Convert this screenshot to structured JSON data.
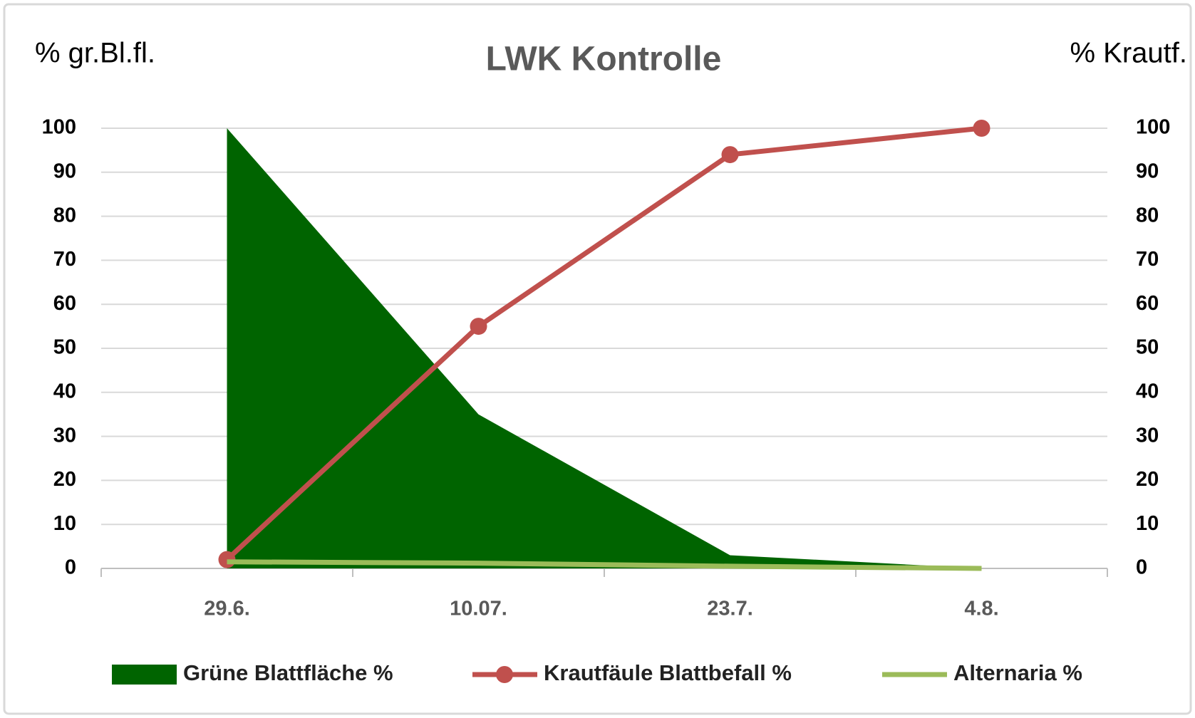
{
  "chart_data": {
    "type": "area-line",
    "title": "LWK Kontrolle",
    "ylabel": "% gr.Bl.fl.",
    "y2label": "% Krautf.",
    "categories": [
      "29.6.",
      "10.07.",
      "23.7.",
      "4.8."
    ],
    "series": [
      {
        "name": "Grüne Blattfläche %",
        "color": "#006400",
        "kind": "area",
        "values": [
          100,
          35,
          3,
          0
        ]
      },
      {
        "name": "Krautfäule Blattbefall %",
        "color": "#c0504d",
        "kind": "line-marker",
        "axis": "y2",
        "values": [
          2,
          55,
          94,
          100
        ]
      },
      {
        "name": "Alternaria %",
        "color": "#9bbb59",
        "kind": "line",
        "values": [
          1.5,
          1.2,
          0.5,
          0
        ]
      }
    ],
    "ylim": [
      0,
      100
    ],
    "yticks": [
      0,
      10,
      20,
      30,
      40,
      50,
      60,
      70,
      80,
      90,
      100
    ],
    "y2lim": [
      0,
      100
    ],
    "y2ticks": [
      0,
      10,
      20,
      30,
      40,
      50,
      60,
      70,
      80,
      90,
      100
    ],
    "grid": true,
    "legend": "bottom"
  }
}
